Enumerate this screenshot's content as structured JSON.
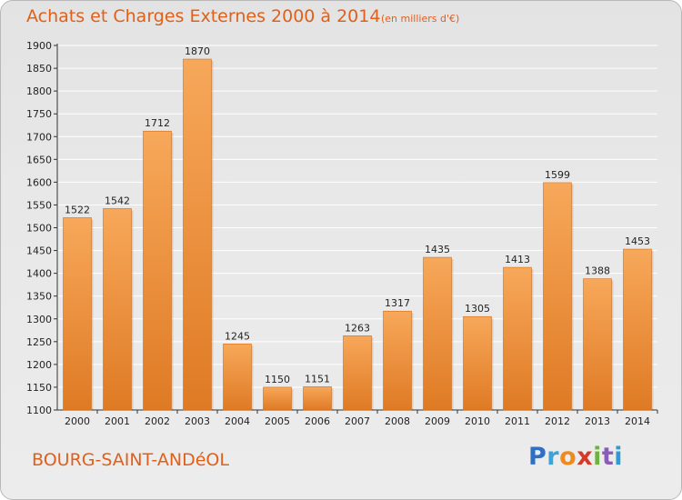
{
  "header": {
    "title": "Achats et Charges Externes 2000 à 2014",
    "unit": "(en milliers d'€)"
  },
  "footer": {
    "commune": "BOURG-SAINT-ANDéOL",
    "logo_letters": [
      "P",
      "r",
      "o",
      "x",
      "i",
      "t",
      "i"
    ],
    "logo_colors": [
      "#2f6fc4",
      "#3aa3d8",
      "#f08a1c",
      "#d43a2a",
      "#6db33f",
      "#8a5cb8",
      "#2f9ad3"
    ]
  },
  "colors": {
    "bar_light": "#f7a85a",
    "bar_dark": "#df7a24",
    "accent": "#e0601a",
    "grid": "#ffffff"
  },
  "chart_data": {
    "type": "bar",
    "title": "Achats et Charges Externes 2000 à 2014",
    "subtitle": "(en milliers d'€)",
    "categories": [
      "2000",
      "2001",
      "2002",
      "2003",
      "2004",
      "2005",
      "2006",
      "2007",
      "2008",
      "2009",
      "2010",
      "2011",
      "2012",
      "2013",
      "2014"
    ],
    "values": [
      1522,
      1542,
      1712,
      1870,
      1245,
      1150,
      1151,
      1263,
      1317,
      1435,
      1305,
      1413,
      1599,
      1388,
      1453
    ],
    "ylim": [
      1100,
      1900
    ],
    "yticks": [
      1100,
      1150,
      1200,
      1250,
      1300,
      1350,
      1400,
      1450,
      1500,
      1550,
      1600,
      1650,
      1700,
      1750,
      1800,
      1850,
      1900
    ],
    "grid": true,
    "data_labels": true,
    "xlabel": "",
    "ylabel": ""
  }
}
